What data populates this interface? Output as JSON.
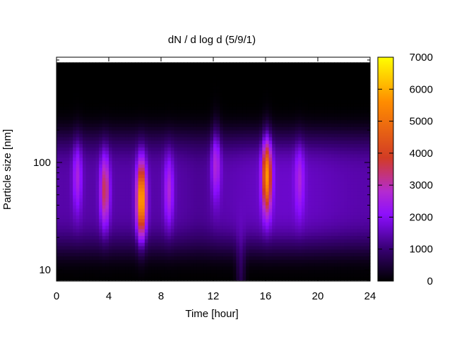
{
  "chart_data": {
    "type": "heatmap",
    "title": "dN / d log d (5/9/1)",
    "xlabel": "Time [hour]",
    "ylabel": "Particle size [nm]",
    "xlim": [
      0,
      24
    ],
    "x_ticks": [
      0,
      4,
      8,
      12,
      16,
      20,
      24
    ],
    "y_scale": "log",
    "ylim": [
      8,
      900
    ],
    "y_ticks": [
      10,
      100
    ],
    "colorbar": {
      "min": 0,
      "max": 7000,
      "ticks": [
        0,
        1000,
        2000,
        3000,
        4000,
        5000,
        6000,
        7000
      ],
      "colormap": [
        "#000000",
        "#3a0078",
        "#8a0dff",
        "#b42bd0",
        "#d23c25",
        "#ff8c00",
        "#ffff00"
      ]
    },
    "grid": false,
    "events": [
      {
        "time": 1.6,
        "diameter": 75,
        "peak": 2600
      },
      {
        "time": 3.7,
        "diameter": 55,
        "peak": 3600
      },
      {
        "time": 6.5,
        "diameter": 45,
        "peak": 6200
      },
      {
        "time": 8.6,
        "diameter": 55,
        "peak": 2700
      },
      {
        "time": 12.2,
        "diameter": 100,
        "peak": 2800
      },
      {
        "time": 14.1,
        "diameter": 10,
        "peak": 2100
      },
      {
        "time": 16.1,
        "diameter": 75,
        "peak": 5500
      },
      {
        "time": 18.6,
        "diameter": 70,
        "peak": 2400
      }
    ]
  }
}
